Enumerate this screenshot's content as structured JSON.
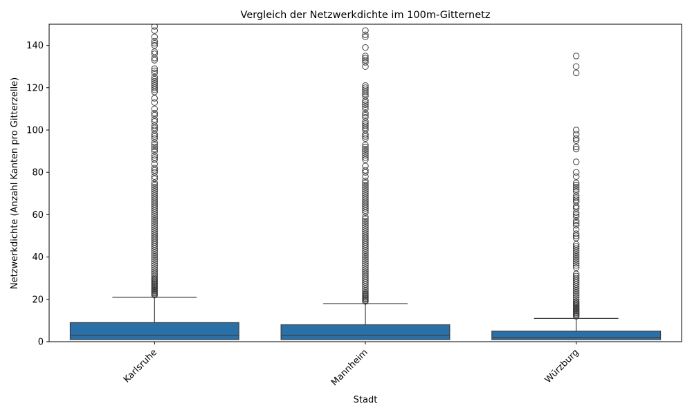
{
  "chart_data": {
    "type": "box",
    "title": "Vergleich der Netzwerkdichte im 100m-Gitternetz",
    "xlabel": "Stadt",
    "ylabel": "Netzwerkdichte (Anzahl Kanten pro Gitterzelle)",
    "ylim": [
      0,
      150
    ],
    "yticks": [
      0,
      20,
      40,
      60,
      80,
      100,
      120,
      140
    ],
    "grid": false,
    "box_color": "#2a70a8",
    "edge_color": "#3d3d3d",
    "categories": [
      "Karlsruhe",
      "Mannheim",
      "Würzburg"
    ],
    "boxes": [
      {
        "category": "Karlsruhe",
        "q1": 1,
        "median": 3,
        "q3": 9,
        "whisker_low": 1,
        "whisker_high": 21,
        "outliers": [
          22,
          22.5,
          23,
          23.5,
          24,
          24.5,
          25,
          25.5,
          26,
          26.5,
          27,
          27.5,
          28,
          28.5,
          29,
          29.5,
          30,
          31,
          32,
          33,
          34,
          35,
          36,
          37,
          38,
          39,
          40,
          41,
          42,
          43,
          44,
          45,
          46,
          47,
          48,
          49,
          50,
          51,
          52,
          53,
          54,
          55,
          56,
          57,
          58,
          59,
          60,
          61,
          62,
          63,
          64,
          65,
          66,
          67,
          68,
          69,
          70,
          71,
          72,
          73,
          74,
          75,
          77,
          78,
          80,
          81,
          82,
          84,
          86,
          87,
          88,
          90,
          91,
          92,
          93,
          94,
          96,
          97,
          98,
          100,
          101,
          102,
          104,
          105,
          107,
          108,
          110,
          113,
          115,
          118,
          119,
          120,
          121,
          122,
          123,
          124,
          125,
          127,
          128,
          129,
          133,
          134,
          136,
          137,
          140,
          141,
          142,
          144,
          147,
          149
        ]
      },
      {
        "category": "Mannheim",
        "q1": 1,
        "median": 3,
        "q3": 8,
        "whisker_low": 1,
        "whisker_high": 18,
        "outliers": [
          19,
          19.5,
          20,
          20.5,
          21,
          21.5,
          22,
          22.5,
          23,
          24,
          25,
          26,
          27,
          28,
          29,
          30,
          31,
          32,
          33,
          34,
          35,
          36,
          37,
          38,
          39,
          40,
          41,
          42,
          43,
          44,
          45,
          46,
          47,
          48,
          49,
          50,
          51,
          52,
          53,
          54,
          55,
          56,
          57,
          58,
          59,
          61,
          62,
          63,
          64,
          65,
          66,
          67,
          68,
          69,
          70,
          71,
          72,
          73,
          74,
          75,
          76,
          78,
          80,
          81,
          83,
          86,
          87,
          88,
          89,
          90,
          91,
          92,
          93,
          96,
          97,
          98,
          100,
          101,
          102,
          103,
          104,
          106,
          107,
          108,
          110,
          111,
          112,
          113,
          114,
          116,
          117,
          118,
          119,
          120,
          121,
          130,
          132,
          133,
          134,
          135,
          139,
          144,
          145,
          147
        ]
      },
      {
        "category": "Würzburg",
        "q1": 1,
        "median": 2,
        "q3": 5,
        "whisker_low": 1,
        "whisker_high": 11,
        "outliers": [
          12,
          12.5,
          13,
          13.5,
          14,
          14.5,
          15,
          15.5,
          16,
          16.5,
          17,
          17.5,
          18,
          18.5,
          19,
          20,
          21,
          22,
          23,
          24,
          25,
          26,
          27,
          28,
          29,
          30,
          31,
          32,
          35,
          36,
          37,
          38,
          39,
          40,
          41,
          42,
          43,
          44,
          45,
          46,
          49,
          50,
          51,
          53,
          55,
          56,
          57,
          59,
          60,
          61,
          63,
          64,
          66,
          67,
          68,
          69,
          71,
          72,
          73,
          74,
          75,
          78,
          80,
          85,
          91,
          92,
          95,
          96,
          98,
          100,
          127,
          130,
          135
        ]
      }
    ]
  }
}
